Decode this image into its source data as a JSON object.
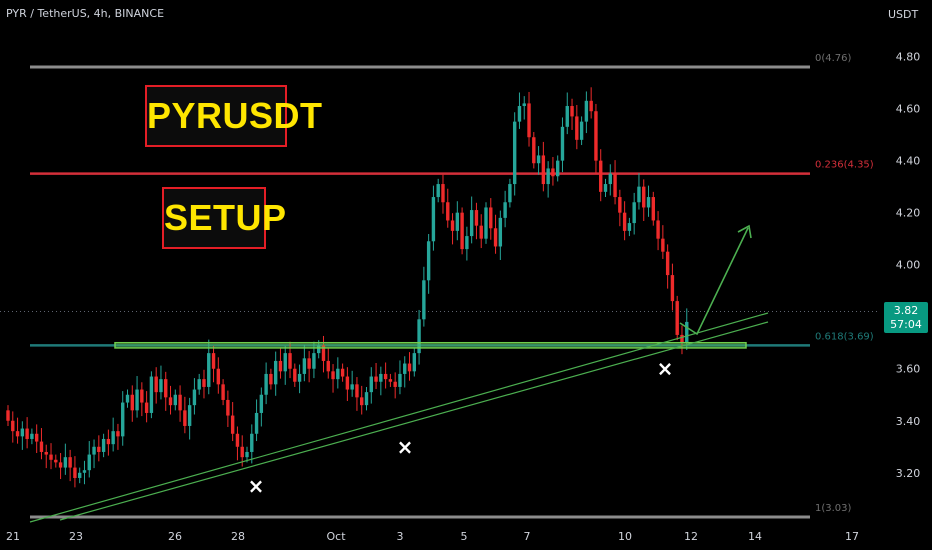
{
  "header": {
    "symbol_line": "PYR / TetherUS, 4h, BINANCE",
    "currency": "USDT"
  },
  "badges": {
    "title": "PYRUSDT",
    "subtitle": "SETUP"
  },
  "current_price": {
    "value": "3.82",
    "countdown": "57:04"
  },
  "colors": {
    "background": "#000000",
    "up_candle": "#26a69a",
    "down_candle": "#ef2b2b",
    "fib_level": "#8c8c8c",
    "fib_236": "#d32f3a",
    "fib_618": "#1f7a78",
    "trendline": "#4caf50",
    "zone": "#6fcf4f",
    "marker": "#ffffff"
  },
  "chart_data": {
    "type": "candlestick",
    "ylim": [
      3.03,
      4.88
    ],
    "y_ticks": [
      "4.80",
      "4.60",
      "4.40",
      "4.20",
      "4.00",
      "3.60",
      "3.40",
      "3.20"
    ],
    "x_ticks": [
      "21",
      "23",
      "26",
      "28",
      "Oct",
      "3",
      "5",
      "7",
      "10",
      "12",
      "14",
      "17"
    ],
    "fib_levels": [
      {
        "label": "0(4.76)",
        "price": 4.76,
        "style": "grey"
      },
      {
        "label": "0.236(4.35)",
        "price": 4.35,
        "style": "red"
      },
      {
        "label": "0.618(3.69)",
        "price": 3.69,
        "style": "teal"
      },
      {
        "label": "1(3.03)",
        "price": 3.03,
        "style": "grey"
      }
    ],
    "support_zone": {
      "top": 3.7,
      "bottom": 3.68
    },
    "current_price": 3.82,
    "closes": [
      3.4,
      3.36,
      3.34,
      3.37,
      3.33,
      3.35,
      3.32,
      3.28,
      3.27,
      3.25,
      3.24,
      3.22,
      3.26,
      3.22,
      3.18,
      3.2,
      3.21,
      3.27,
      3.3,
      3.28,
      3.33,
      3.31,
      3.36,
      3.34,
      3.47,
      3.5,
      3.44,
      3.52,
      3.47,
      3.43,
      3.57,
      3.51,
      3.56,
      3.49,
      3.46,
      3.5,
      3.44,
      3.38,
      3.46,
      3.52,
      3.56,
      3.53,
      3.66,
      3.6,
      3.54,
      3.48,
      3.42,
      3.35,
      3.3,
      3.26,
      3.28,
      3.35,
      3.43,
      3.5,
      3.58,
      3.54,
      3.63,
      3.59,
      3.66,
      3.6,
      3.55,
      3.58,
      3.64,
      3.6,
      3.66,
      3.69,
      3.63,
      3.59,
      3.56,
      3.6,
      3.57,
      3.52,
      3.54,
      3.49,
      3.46,
      3.51,
      3.57,
      3.55,
      3.58,
      3.56,
      3.55,
      3.53,
      3.58,
      3.62,
      3.59,
      3.66,
      3.79,
      3.94,
      4.09,
      4.26,
      4.31,
      4.24,
      4.17,
      4.13,
      4.2,
      4.06,
      4.11,
      4.21,
      4.15,
      4.1,
      4.22,
      4.14,
      4.07,
      4.18,
      4.24,
      4.31,
      4.55,
      4.61,
      4.62,
      4.49,
      4.39,
      4.42,
      4.31,
      4.37,
      4.34,
      4.4,
      4.53,
      4.61,
      4.57,
      4.48,
      4.55,
      4.63,
      4.59,
      4.4,
      4.28,
      4.31,
      4.35,
      4.26,
      4.2,
      4.13,
      4.16,
      4.24,
      4.3,
      4.22,
      4.26,
      4.17,
      4.1,
      4.05,
      3.96,
      3.86,
      3.73,
      3.7,
      3.78
    ],
    "markers": [
      {
        "label": "×",
        "candle": 37,
        "price": 3.15
      },
      {
        "label": "×",
        "candle": 60,
        "price": 3.3
      },
      {
        "label": "×",
        "candle": 137,
        "price": 3.6
      }
    ],
    "trendlines": [
      {
        "from": [
          "Sep 21",
          3.02
        ],
        "to": [
          "Oct 14",
          3.77
        ]
      },
      {
        "from": [
          "Sep 21",
          3.06
        ],
        "to": [
          "Oct 14",
          3.8
        ]
      }
    ]
  }
}
